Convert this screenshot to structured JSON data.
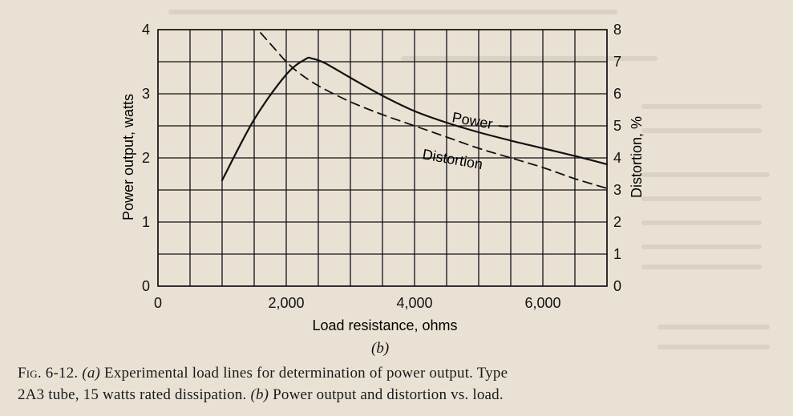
{
  "chart_data": {
    "type": "line",
    "x": [
      1000,
      1500,
      2000,
      2300,
      2600,
      3000,
      3500,
      4000,
      4500,
      5000,
      5500,
      6000,
      6500,
      7000
    ],
    "series": [
      {
        "name": "Power",
        "axis": "left",
        "style": "solid",
        "x": [
          1000,
          1500,
          2000,
          2300,
          2400,
          2600,
          3000,
          3500,
          4000,
          4500,
          5000,
          5500,
          6000,
          6500,
          7000
        ],
        "values": [
          1.65,
          2.6,
          3.3,
          3.54,
          3.55,
          3.48,
          3.25,
          2.97,
          2.73,
          2.55,
          2.4,
          2.27,
          2.15,
          2.03,
          1.9
        ]
      },
      {
        "name": "Distortion",
        "axis": "right",
        "style": "dashed",
        "x": [
          1600,
          1800,
          2000,
          2200,
          2500,
          3000,
          3500,
          4000,
          4500,
          5000,
          5500,
          6000,
          6500,
          7000
        ],
        "values": [
          7.9,
          7.45,
          7.0,
          6.65,
          6.25,
          5.75,
          5.35,
          5.0,
          4.65,
          4.3,
          4.0,
          3.7,
          3.35,
          3.05
        ]
      }
    ],
    "xlabel": "Load resistance, ohms",
    "ylabel": "Power output, watts",
    "y2label": "Distortion, %",
    "xlim": [
      0,
      7000
    ],
    "ylim": [
      0,
      4
    ],
    "y2lim": [
      0,
      8
    ],
    "xticks": [
      "0",
      "2,000",
      "4,000",
      "6,000"
    ],
    "yticks": [
      "0",
      "1",
      "2",
      "3",
      "4"
    ],
    "y2ticks": [
      "0",
      "1",
      "2",
      "3",
      "4",
      "5",
      "6",
      "7",
      "8"
    ],
    "annotations": [
      "Power",
      "Distortion"
    ],
    "grid": true,
    "subfigure_label": "(b)"
  },
  "caption": {
    "fig_label": "Fig. 6-12.",
    "part_a_label": "(a)",
    "line1_text": " Experimental load lines for determination of power output.  Type",
    "line2_text": "2A3 tube, 15 watts rated dissipation.  ",
    "part_b_label": "(b)",
    "line2_rest": " Power output and distortion vs. load."
  },
  "colors": {
    "paper": "#e9e2d4",
    "ink": "#111111"
  }
}
